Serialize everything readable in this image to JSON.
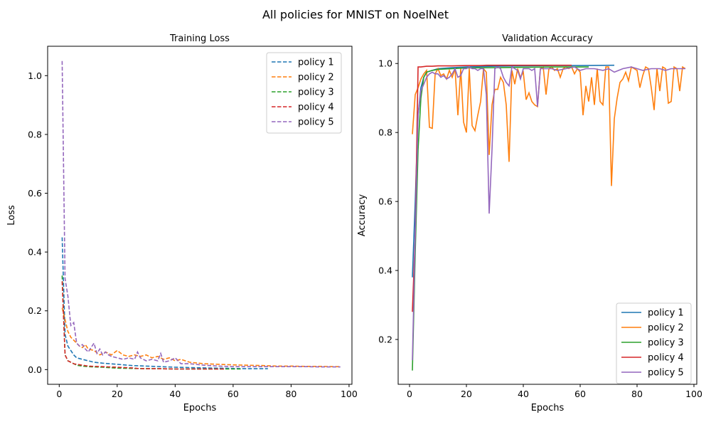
{
  "figure": {
    "title": "All policies for MNIST on NoelNet"
  },
  "colors": {
    "policy_1": "#1f77b4",
    "policy_2": "#ff7f0e",
    "policy_3": "#2ca02c",
    "policy_4": "#d62728",
    "policy_5": "#9467bd"
  },
  "chart_data": [
    {
      "type": "line",
      "title": "Training Loss",
      "xlabel": "Epochs",
      "ylabel": "Loss",
      "xlim": [
        -4,
        101
      ],
      "ylim": [
        -0.05,
        1.1
      ],
      "xticks": [
        0,
        20,
        40,
        60,
        80,
        100
      ],
      "yticks": [
        0.0,
        0.2,
        0.4,
        0.6,
        0.8,
        1.0
      ],
      "ytick_labels": [
        "0.0",
        "0.2",
        "0.4",
        "0.6",
        "0.8",
        "1.0"
      ],
      "line_style": "dashed",
      "grid": false,
      "legend_position": "top-right",
      "series": [
        {
          "name": "policy 1",
          "color_key": "policy_1",
          "x": [
            1,
            2,
            3,
            4,
            5,
            6,
            8,
            10,
            12,
            15,
            20,
            25,
            30,
            35,
            40,
            45,
            50,
            55,
            60,
            65,
            72
          ],
          "y": [
            0.45,
            0.12,
            0.08,
            0.065,
            0.05,
            0.04,
            0.035,
            0.03,
            0.025,
            0.022,
            0.018,
            0.014,
            0.012,
            0.01,
            0.008,
            0.007,
            0.006,
            0.005,
            0.004,
            0.003,
            0.003
          ]
        },
        {
          "name": "policy 2",
          "color_key": "policy_2",
          "x": [
            1,
            2,
            3,
            4,
            5,
            6,
            7,
            8,
            9,
            10,
            12,
            14,
            16,
            18,
            20,
            22,
            24,
            26,
            28,
            30,
            32,
            34,
            36,
            38,
            40,
            42,
            45,
            50,
            55,
            60,
            65,
            70,
            75,
            80,
            85,
            90,
            95,
            97
          ],
          "y": [
            0.21,
            0.17,
            0.13,
            0.11,
            0.1,
            0.09,
            0.08,
            0.075,
            0.085,
            0.07,
            0.065,
            0.05,
            0.06,
            0.05,
            0.065,
            0.05,
            0.045,
            0.05,
            0.045,
            0.05,
            0.04,
            0.045,
            0.035,
            0.04,
            0.03,
            0.035,
            0.025,
            0.02,
            0.018,
            0.016,
            0.015,
            0.014,
            0.012,
            0.012,
            0.011,
            0.011,
            0.01,
            0.01
          ]
        },
        {
          "name": "policy 3",
          "color_key": "policy_3",
          "x": [
            1,
            2,
            3,
            4,
            5,
            6,
            8,
            10,
            12,
            15,
            20,
            25,
            30,
            35,
            40,
            45,
            50,
            55,
            60,
            63
          ],
          "y": [
            0.32,
            0.05,
            0.03,
            0.025,
            0.02,
            0.015,
            0.012,
            0.01,
            0.009,
            0.008,
            0.005,
            0.004,
            0.003,
            0.003,
            0.002,
            0.002,
            0.002,
            0.002,
            0.002,
            0.002
          ]
        },
        {
          "name": "policy 4",
          "color_key": "policy_4",
          "x": [
            1,
            2,
            3,
            4,
            5,
            6,
            8,
            10,
            12,
            15,
            20,
            25,
            27,
            30,
            35,
            40,
            45,
            50,
            55,
            57
          ],
          "y": [
            0.3,
            0.05,
            0.03,
            0.025,
            0.02,
            0.018,
            0.015,
            0.012,
            0.011,
            0.01,
            0.008,
            0.006,
            0.004,
            0.003,
            0.003,
            0.002,
            0.002,
            0.002,
            0.002,
            0.002
          ]
        },
        {
          "name": "policy 5",
          "color_key": "policy_5",
          "x": [
            1,
            2,
            3,
            4,
            5,
            6,
            7,
            8,
            9,
            10,
            11,
            12,
            13,
            14,
            15,
            16,
            17,
            18,
            20,
            22,
            24,
            26,
            27,
            28,
            30,
            32,
            34,
            35,
            36,
            38,
            40,
            42,
            45,
            50,
            55,
            60,
            65,
            70,
            75,
            80,
            85,
            90,
            95,
            97
          ],
          "y": [
            1.05,
            0.31,
            0.25,
            0.15,
            0.16,
            0.09,
            0.08,
            0.085,
            0.07,
            0.06,
            0.075,
            0.09,
            0.055,
            0.07,
            0.05,
            0.06,
            0.05,
            0.045,
            0.04,
            0.035,
            0.04,
            0.035,
            0.06,
            0.04,
            0.03,
            0.035,
            0.03,
            0.055,
            0.025,
            0.03,
            0.04,
            0.02,
            0.02,
            0.015,
            0.012,
            0.01,
            0.01,
            0.01,
            0.01,
            0.01,
            0.01,
            0.009,
            0.009,
            0.009
          ]
        }
      ]
    },
    {
      "type": "line",
      "title": "Validation Accuracy",
      "xlabel": "Epochs",
      "ylabel": "Accuracy",
      "xlim": [
        -4,
        101
      ],
      "ylim": [
        0.07,
        1.05
      ],
      "xticks": [
        0,
        20,
        40,
        60,
        80,
        100
      ],
      "yticks": [
        0.2,
        0.4,
        0.6,
        0.8,
        1.0
      ],
      "ytick_labels": [
        "0.2",
        "0.4",
        "0.6",
        "0.8",
        "1.0"
      ],
      "line_style": "solid",
      "grid": false,
      "legend_position": "bottom-right",
      "series": [
        {
          "name": "policy 1",
          "color_key": "policy_1",
          "x": [
            1,
            2,
            3,
            4,
            5,
            6,
            8,
            10,
            15,
            20,
            30,
            40,
            50,
            60,
            72
          ],
          "y": [
            0.38,
            0.6,
            0.85,
            0.93,
            0.96,
            0.975,
            0.98,
            0.985,
            0.988,
            0.99,
            0.992,
            0.993,
            0.994,
            0.994,
            0.995
          ]
        },
        {
          "name": "policy 2",
          "color_key": "policy_2",
          "x": [
            1,
            2,
            3,
            4,
            5,
            6,
            7,
            8,
            9,
            10,
            11,
            12,
            13,
            14,
            15,
            16,
            17,
            18,
            19,
            20,
            21,
            22,
            23,
            24,
            25,
            26,
            27,
            28,
            29,
            30,
            31,
            32,
            33,
            34,
            35,
            36,
            37,
            38,
            39,
            40,
            41,
            42,
            43,
            44,
            45,
            46,
            47,
            48,
            49,
            50,
            51,
            52,
            53,
            54,
            55,
            56,
            57,
            58,
            59,
            60,
            61,
            62,
            63,
            64,
            65,
            66,
            67,
            68,
            69,
            70,
            71,
            72,
            73,
            74,
            75,
            76,
            77,
            78,
            79,
            80,
            81,
            82,
            83,
            84,
            85,
            86,
            87,
            88,
            89,
            90,
            91,
            92,
            93,
            94,
            95,
            96,
            97
          ],
          "y": [
            0.795,
            0.91,
            0.93,
            0.955,
            0.97,
            0.98,
            0.815,
            0.812,
            0.97,
            0.985,
            0.965,
            0.97,
            0.955,
            0.98,
            0.96,
            0.985,
            0.85,
            0.985,
            0.83,
            0.8,
            0.985,
            0.82,
            0.805,
            0.85,
            0.89,
            0.985,
            0.975,
            0.735,
            0.88,
            0.925,
            0.925,
            0.96,
            0.945,
            0.88,
            0.715,
            0.98,
            0.94,
            0.985,
            0.96,
            0.975,
            0.895,
            0.915,
            0.89,
            0.88,
            0.875,
            0.985,
            0.99,
            0.91,
            0.985,
            0.99,
            0.98,
            0.985,
            0.96,
            0.985,
            0.99,
            0.985,
            0.99,
            0.97,
            0.985,
            0.975,
            0.85,
            0.935,
            0.89,
            0.96,
            0.88,
            0.985,
            0.89,
            0.88,
            0.99,
            0.99,
            0.645,
            0.84,
            0.9,
            0.945,
            0.955,
            0.975,
            0.95,
            0.99,
            0.985,
            0.98,
            0.93,
            0.965,
            0.99,
            0.985,
            0.93,
            0.865,
            0.985,
            0.92,
            0.99,
            0.985,
            0.885,
            0.89,
            0.99,
            0.985,
            0.92,
            0.99,
            0.985
          ]
        },
        {
          "name": "policy 3",
          "color_key": "policy_3",
          "x": [
            1,
            2,
            3,
            4,
            5,
            6,
            8,
            10,
            15,
            20,
            30,
            40,
            50,
            60,
            63
          ],
          "y": [
            0.11,
            0.45,
            0.75,
            0.9,
            0.96,
            0.975,
            0.98,
            0.983,
            0.985,
            0.987,
            0.988,
            0.989,
            0.99,
            0.99,
            0.99
          ]
        },
        {
          "name": "policy 4",
          "color_key": "policy_4",
          "x": [
            1,
            2,
            3,
            4,
            5,
            6,
            8,
            10,
            15,
            20,
            25,
            27,
            30,
            40,
            50,
            57
          ],
          "y": [
            0.28,
            0.5,
            0.99,
            0.99,
            0.991,
            0.992,
            0.992,
            0.993,
            0.993,
            0.994,
            0.994,
            0.995,
            0.995,
            0.995,
            0.995,
            0.995
          ]
        },
        {
          "name": "policy 5",
          "color_key": "policy_5",
          "x": [
            1,
            2,
            3,
            4,
            5,
            6,
            7,
            8,
            9,
            10,
            11,
            12,
            13,
            14,
            15,
            16,
            17,
            18,
            19,
            20,
            21,
            22,
            23,
            24,
            25,
            26,
            27,
            28,
            29,
            30,
            31,
            32,
            33,
            34,
            35,
            36,
            37,
            38,
            39,
            40,
            41,
            42,
            43,
            44,
            45,
            46,
            47,
            48,
            50,
            52,
            55,
            58,
            60,
            62,
            65,
            68,
            70,
            72,
            75,
            78,
            80,
            82,
            85,
            88,
            90,
            92,
            95,
            97
          ],
          "y": [
            0.14,
            0.5,
            0.85,
            0.92,
            0.94,
            0.96,
            0.97,
            0.975,
            0.97,
            0.97,
            0.96,
            0.965,
            0.955,
            0.96,
            0.97,
            0.985,
            0.96,
            0.965,
            0.985,
            0.985,
            0.99,
            0.985,
            0.985,
            0.98,
            0.985,
            0.985,
            0.91,
            0.565,
            0.75,
            0.985,
            0.99,
            0.985,
            0.96,
            0.945,
            0.935,
            0.99,
            0.985,
            0.98,
            0.955,
            0.985,
            0.985,
            0.985,
            0.98,
            0.985,
            0.875,
            0.985,
            0.985,
            0.985,
            0.985,
            0.98,
            0.985,
            0.99,
            0.98,
            0.985,
            0.985,
            0.98,
            0.985,
            0.975,
            0.985,
            0.99,
            0.985,
            0.98,
            0.985,
            0.985,
            0.98,
            0.985,
            0.985,
            0.985
          ]
        }
      ]
    }
  ]
}
